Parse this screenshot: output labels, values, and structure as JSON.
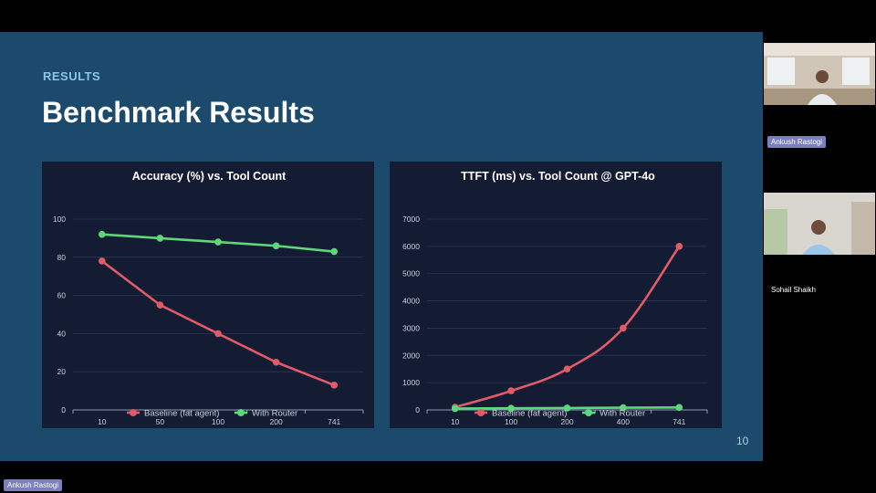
{
  "slide": {
    "eyebrow": "RESULTS",
    "title": "Benchmark Results",
    "page_number": "10"
  },
  "participants": [
    {
      "name": "Ankush Rastogi"
    },
    {
      "name": "Sohail Shaikh"
    }
  ],
  "active_speaker_label": "Ankush Rastogi",
  "colors": {
    "slide_bg": "#1b4a6c",
    "chart_bg": "#141c33",
    "baseline": "#e05a68",
    "router": "#5ed67a"
  },
  "chart_data": [
    {
      "type": "line",
      "title": "Accuracy (%) vs. Tool Count",
      "categories": [
        "10",
        "50",
        "100",
        "200",
        "741"
      ],
      "series": [
        {
          "name": "Baseline (fat agent)",
          "values": [
            78,
            55,
            40,
            25,
            13
          ]
        },
        {
          "name": "With Router",
          "values": [
            92,
            90,
            88,
            86,
            83
          ]
        }
      ],
      "ylim": [
        0,
        100
      ],
      "yticks": [
        "0",
        "20",
        "40",
        "60",
        "80",
        "100"
      ],
      "grid": true,
      "legend": "bottom"
    },
    {
      "type": "line",
      "title": "TTFT (ms) vs. Tool Count @ GPT-4o",
      "categories": [
        "10",
        "100",
        "200",
        "400",
        "741"
      ],
      "series": [
        {
          "name": "Baseline (fat agent)",
          "values": [
            100,
            700,
            1500,
            3000,
            6000
          ]
        },
        {
          "name": "With Router",
          "values": [
            50,
            60,
            70,
            80,
            90
          ]
        }
      ],
      "ylim": [
        0,
        7000
      ],
      "yticks": [
        "0",
        "1000",
        "2000",
        "3000",
        "4000",
        "5000",
        "6000",
        "7000"
      ],
      "grid": true,
      "legend": "bottom"
    }
  ]
}
